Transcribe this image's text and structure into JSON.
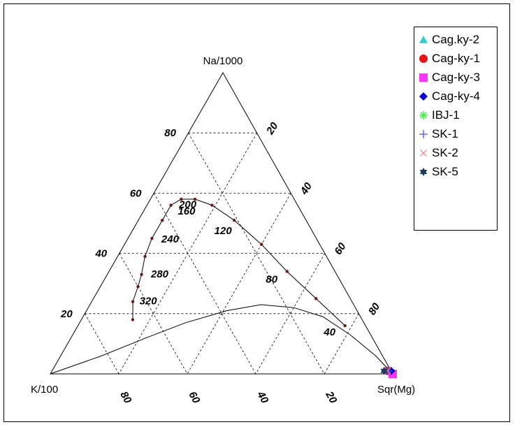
{
  "chart_data": {
    "type": "ternary",
    "apex_labels": {
      "top": "Na/1000",
      "left": "K/100",
      "right": "Sqr(Mg)"
    },
    "grid": "dashed",
    "left_axis_ticks": [
      "80",
      "60",
      "40",
      "20"
    ],
    "right_axis_ticks": [
      "20",
      "40",
      "60",
      "80"
    ],
    "bottom_axis_ticks": [
      "80",
      "60",
      "40",
      "20"
    ],
    "tick_values": [
      80,
      60,
      40,
      20
    ],
    "upper_curve_labels": [
      "320",
      "280",
      "240",
      "200",
      "160",
      "120",
      "80",
      "40"
    ],
    "legend": {
      "placement": "top-right",
      "entries": [
        {
          "name": "Cag.ky-2",
          "symbol": "triangle",
          "color": "#33cccc"
        },
        {
          "name": "Cag-ky-1",
          "symbol": "circle",
          "color": "#ee1111"
        },
        {
          "name": "Cag-ky-3",
          "symbol": "square",
          "color": "#ff33ff"
        },
        {
          "name": "Cag-ky-4",
          "symbol": "diamond",
          "color": "#0000dd"
        },
        {
          "name": "IBJ-1",
          "symbol": "asterisk",
          "color": "#33ee33"
        },
        {
          "name": "SK-1",
          "symbol": "plus",
          "color": "#4444ff"
        },
        {
          "name": "SK-2",
          "symbol": "cross",
          "color": "#ff7777"
        },
        {
          "name": "SK-5",
          "symbol": "star6",
          "color": "#1a3a5c"
        }
      ]
    },
    "samples": [
      {
        "name": "Cag.ky-2",
        "top": 1,
        "left": 1,
        "right": 98
      },
      {
        "name": "Cag-ky-1",
        "top": 1,
        "left": 1,
        "right": 98
      },
      {
        "name": "Cag-ky-3",
        "top": 0,
        "left": 0,
        "right": 100
      },
      {
        "name": "Cag-ky-4",
        "top": 1,
        "left": 0,
        "right": 99
      },
      {
        "name": "IBJ-1",
        "top": 1,
        "left": 1,
        "right": 98
      },
      {
        "name": "SK-1",
        "top": 1,
        "left": 1,
        "right": 98
      },
      {
        "name": "SK-2",
        "top": 1,
        "left": 1,
        "right": 98
      },
      {
        "name": "SK-5",
        "top": 1,
        "left": 2,
        "right": 97
      }
    ],
    "lower_curve": [
      [
        0,
        100,
        0
      ],
      [
        6,
        82,
        12
      ],
      [
        12,
        66,
        22
      ],
      [
        17,
        52,
        31
      ],
      [
        21,
        38,
        41
      ],
      [
        23,
        27,
        50
      ],
      [
        22,
        18,
        60
      ],
      [
        19,
        11,
        70
      ],
      [
        13,
        6,
        81
      ],
      [
        6,
        2,
        92
      ],
      [
        0,
        0,
        100
      ]
    ],
    "upper_curve": [
      [
        18,
        67,
        15
      ],
      [
        24,
        64,
        12
      ],
      [
        29,
        60,
        11
      ],
      [
        33,
        57,
        10
      ],
      [
        39,
        53,
        8
      ],
      [
        45,
        48,
        7
      ],
      [
        51,
        42,
        7
      ],
      [
        56,
        37,
        7
      ],
      [
        58,
        33,
        9
      ],
      [
        58,
        29,
        13
      ],
      [
        56,
        25,
        19
      ],
      [
        51,
        21,
        28
      ],
      [
        43,
        17,
        40
      ],
      [
        34,
        14,
        52
      ],
      [
        25,
        10,
        65
      ],
      [
        16,
        6,
        78
      ]
    ]
  }
}
